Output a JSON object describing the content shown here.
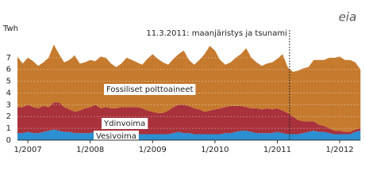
{
  "chart_data": {
    "type": "stacked-area",
    "y_label": "Twh",
    "annotation": "11.3.2011: maanjäristys ja tsunami",
    "logo": "eia",
    "categories": [
      null,
      null,
      "1/2007",
      null,
      null,
      null,
      null,
      null,
      null,
      null,
      null,
      null,
      null,
      null,
      "1/2008",
      null,
      null,
      null,
      null,
      null,
      null,
      null,
      null,
      null,
      null,
      null,
      "1/2009",
      null,
      null,
      null,
      null,
      null,
      null,
      null,
      null,
      null,
      null,
      null,
      "1/2010",
      null,
      null,
      null,
      null,
      null,
      null,
      null,
      null,
      null,
      null,
      null,
      "1/2011",
      null,
      null,
      null,
      null,
      null,
      null,
      null,
      null,
      null,
      null,
      null,
      "1/2012",
      null,
      null,
      null,
      null
    ],
    "series": [
      {
        "name": "Vesivoima",
        "color": "#2b8fd1",
        "values": [
          0.6,
          0.6,
          0.7,
          0.6,
          0.6,
          0.7,
          0.8,
          0.9,
          0.8,
          0.7,
          0.7,
          0.6,
          0.6,
          0.6,
          0.6,
          0.7,
          0.6,
          0.6,
          0.7,
          0.8,
          0.7,
          0.6,
          0.6,
          0.5,
          0.5,
          0.5,
          0.5,
          0.5,
          0.5,
          0.5,
          0.6,
          0.7,
          0.6,
          0.6,
          0.5,
          0.5,
          0.5,
          0.5,
          0.5,
          0.5,
          0.6,
          0.6,
          0.7,
          0.8,
          0.8,
          0.7,
          0.6,
          0.6,
          0.6,
          0.6,
          0.7,
          0.6,
          0.5,
          0.5,
          0.5,
          0.6,
          0.7,
          0.8,
          0.7,
          0.7,
          0.6,
          0.5,
          0.5,
          0.5,
          0.5,
          0.7,
          0.8
        ]
      },
      {
        "name": "Ydinvoima",
        "color": "#a8313b",
        "values": [
          2.2,
          2.2,
          2.3,
          2.2,
          2.1,
          2.2,
          2.0,
          2.3,
          2.4,
          2.1,
          1.9,
          1.8,
          1.9,
          2.1,
          2.2,
          2.3,
          2.1,
          2.2,
          2.0,
          1.9,
          2.1,
          2.2,
          2.2,
          2.3,
          2.2,
          2.0,
          1.9,
          1.8,
          1.8,
          2.0,
          2.2,
          2.3,
          2.4,
          2.3,
          2.2,
          2.1,
          1.9,
          2.0,
          2.1,
          2.2,
          2.2,
          2.3,
          2.2,
          2.1,
          2.0,
          2.0,
          2.1,
          2.0,
          2.1,
          2.0,
          2.0,
          1.9,
          1.8,
          1.5,
          1.2,
          1.0,
          0.9,
          0.8,
          0.6,
          0.5,
          0.4,
          0.3,
          0.3,
          0.2,
          0.2,
          0.2,
          0.2
        ]
      },
      {
        "name": "Fossiliset polttoaineet",
        "color": "#c57a2e",
        "values": [
          4.3,
          3.7,
          4.0,
          3.9,
          3.6,
          3.7,
          4.2,
          4.9,
          4.1,
          3.8,
          4.2,
          4.8,
          4.0,
          3.9,
          4.0,
          3.7,
          4.4,
          4.2,
          3.8,
          3.5,
          3.7,
          4.2,
          4.0,
          3.8,
          3.7,
          4.4,
          4.9,
          4.6,
          4.3,
          3.9,
          4.1,
          4.3,
          4.6,
          3.9,
          3.7,
          4.2,
          4.9,
          5.5,
          5.0,
          4.1,
          3.6,
          3.7,
          4.1,
          4.4,
          5.0,
          4.3,
          3.9,
          3.7,
          3.8,
          4.0,
          4.2,
          4.8,
          3.9,
          3.8,
          4.2,
          4.5,
          4.6,
          5.2,
          5.5,
          5.6,
          6.0,
          6.2,
          6.3,
          6.1,
          6.1,
          5.7,
          5.0
        ]
      }
    ],
    "ylim": [
      0,
      8.4
    ],
    "yticks": [
      0,
      1,
      2,
      3,
      4,
      5,
      6,
      7
    ],
    "grid": true
  }
}
